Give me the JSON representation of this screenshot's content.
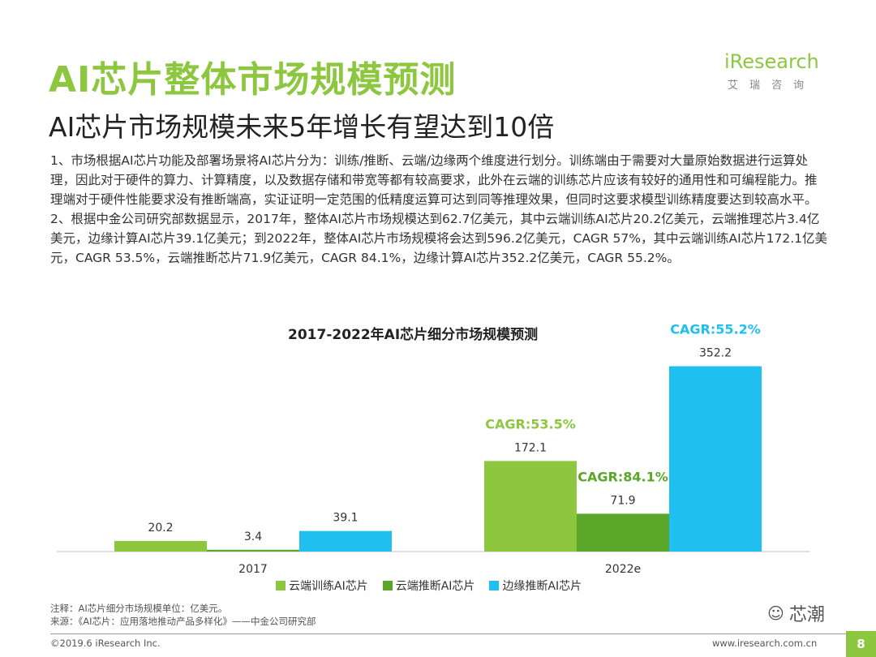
{
  "header": {
    "title": "AI芯片整体市场规模预测",
    "subtitle": "AI芯片市场规模未来5年增长有望达到10倍",
    "logo_text": "iResearch",
    "logo_sub": "艾瑞咨询"
  },
  "body": {
    "paragraph1": "1、市场根据AI芯片功能及部署场景将AI芯片分为：训练/推断、云端/边缘两个维度进行划分。训练端由于需要对大量原始数据进行运算处理，因此对于硬件的算力、计算精度，以及数据存储和带宽等都有较高要求，此外在云端的训练芯片应该有较好的通用性和可编程能力。推理端对于硬件性能要求没有推断端高，实证证明一定范围的低精度运算可达到同等推理效果，但同时这要求模型训练精度要达到较高水平。",
    "paragraph2": "2、根据中金公司研究部数据显示，2017年，整体AI芯片市场规模达到62.7亿美元，其中云端训练AI芯片20.2亿美元，云端推理芯片3.4亿美元，边缘计算AI芯片39.1亿美元；到2022年，整体AI芯片市场规模将会达到596.2亿美元，CAGR 57%，其中云端训练AI芯片172.1亿美元，CAGR 53.5%，云端推断芯片71.9亿美元，CAGR 84.1%，边缘计算AI芯片352.2亿美元，CAGR 55.2%。"
  },
  "chart_data": {
    "type": "bar",
    "title": "2017-2022年AI芯片细分市场规模预测",
    "categories": [
      "2017",
      "2022e"
    ],
    "series": [
      {
        "name": "云端训练AI芯片",
        "values": [
          20.2,
          172.1
        ],
        "color": "#8dc63f"
      },
      {
        "name": "云端推断AI芯片",
        "values": [
          3.4,
          71.9
        ],
        "color": "#5aa628"
      },
      {
        "name": "边缘推断AI芯片",
        "values": [
          39.1,
          352.2
        ],
        "color": "#1fbff0"
      }
    ],
    "cagr_labels": [
      "CAGR:53.5%",
      "CAGR:84.1%",
      "CAGR:55.2%"
    ],
    "ylim": [
      0,
      370
    ],
    "grid": false,
    "legend_position": "bottom"
  },
  "notes": {
    "note1": "注释：AI芯片细分市场规模单位：亿美元。",
    "note2": "来源：《AI芯片：应用落地推动产品多样化》——中金公司研究部"
  },
  "footer": {
    "copyright": "©2019.6 iResearch Inc.",
    "site": "www.iresearch.com.cn",
    "page": "8",
    "watermark": "芯潮"
  }
}
